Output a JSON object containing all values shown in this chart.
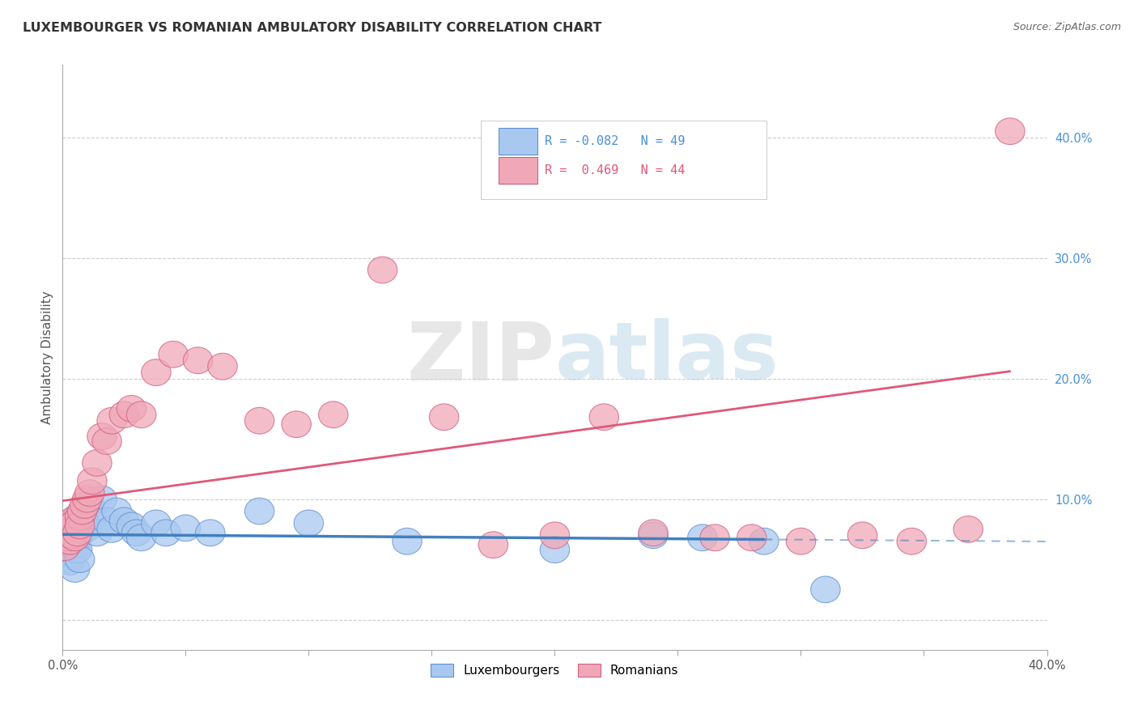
{
  "title": "LUXEMBOURGER VS ROMANIAN AMBULATORY DISABILITY CORRELATION CHART",
  "source": "Source: ZipAtlas.com",
  "ylabel": "Ambulatory Disability",
  "xlim": [
    0.0,
    0.4
  ],
  "ylim": [
    -0.025,
    0.46
  ],
  "xticks": [
    0.0,
    0.05,
    0.1,
    0.15,
    0.2,
    0.25,
    0.3,
    0.35,
    0.4
  ],
  "xtick_labels": [
    "0.0%",
    "",
    "",
    "",
    "",
    "",
    "",
    "",
    "40.0%"
  ],
  "ytick_labels_right": [
    "",
    "10.0%",
    "20.0%",
    "30.0%",
    "40.0%"
  ],
  "yticks_right": [
    0.0,
    0.1,
    0.2,
    0.3,
    0.4
  ],
  "background_color": "#ffffff",
  "grid_color": "#c8c8c8",
  "watermark_zip": "ZIP",
  "watermark_atlas": "atlas",
  "lux_color": "#a8c8f0",
  "rom_color": "#f0a8b8",
  "lux_edge_color": "#6090d0",
  "rom_edge_color": "#d06080",
  "lux_line_color": "#4080c0",
  "rom_line_color": "#e05878",
  "lux_R": -0.082,
  "lux_N": 49,
  "rom_R": 0.469,
  "rom_N": 44,
  "lux_x": [
    0.001,
    0.001,
    0.001,
    0.002,
    0.002,
    0.002,
    0.002,
    0.003,
    0.003,
    0.003,
    0.003,
    0.003,
    0.004,
    0.004,
    0.004,
    0.005,
    0.005,
    0.005,
    0.006,
    0.006,
    0.006,
    0.007,
    0.007,
    0.008,
    0.009,
    0.01,
    0.011,
    0.012,
    0.014,
    0.016,
    0.018,
    0.02,
    0.022,
    0.025,
    0.028,
    0.03,
    0.032,
    0.038,
    0.042,
    0.05,
    0.06,
    0.08,
    0.1,
    0.14,
    0.2,
    0.24,
    0.26,
    0.285,
    0.31
  ],
  "lux_y": [
    0.06,
    0.065,
    0.07,
    0.055,
    0.068,
    0.078,
    0.05,
    0.062,
    0.072,
    0.058,
    0.048,
    0.08,
    0.065,
    0.075,
    0.055,
    0.06,
    0.07,
    0.042,
    0.068,
    0.058,
    0.085,
    0.072,
    0.05,
    0.08,
    0.09,
    0.076,
    0.095,
    0.085,
    0.072,
    0.1,
    0.082,
    0.075,
    0.09,
    0.082,
    0.078,
    0.072,
    0.068,
    0.08,
    0.072,
    0.076,
    0.072,
    0.09,
    0.08,
    0.065,
    0.058,
    0.07,
    0.068,
    0.065,
    0.025
  ],
  "rom_x": [
    0.001,
    0.002,
    0.002,
    0.003,
    0.003,
    0.004,
    0.004,
    0.005,
    0.005,
    0.006,
    0.007,
    0.007,
    0.008,
    0.009,
    0.01,
    0.011,
    0.012,
    0.014,
    0.016,
    0.018,
    0.02,
    0.025,
    0.028,
    0.032,
    0.038,
    0.045,
    0.055,
    0.065,
    0.08,
    0.095,
    0.11,
    0.13,
    0.155,
    0.175,
    0.2,
    0.22,
    0.24,
    0.265,
    0.28,
    0.3,
    0.325,
    0.345,
    0.368,
    0.385
  ],
  "rom_y": [
    0.06,
    0.068,
    0.075,
    0.065,
    0.078,
    0.07,
    0.082,
    0.068,
    0.08,
    0.072,
    0.085,
    0.078,
    0.09,
    0.095,
    0.1,
    0.105,
    0.115,
    0.13,
    0.152,
    0.148,
    0.165,
    0.17,
    0.175,
    0.17,
    0.205,
    0.22,
    0.215,
    0.21,
    0.165,
    0.162,
    0.17,
    0.29,
    0.168,
    0.062,
    0.07,
    0.168,
    0.072,
    0.068,
    0.068,
    0.065,
    0.07,
    0.065,
    0.075,
    0.405
  ],
  "lux_line_x0": 0.0,
  "lux_line_x1": 0.285,
  "lux_line_xdash": 0.4,
  "rom_line_x0": 0.0,
  "rom_line_x1": 0.385
}
